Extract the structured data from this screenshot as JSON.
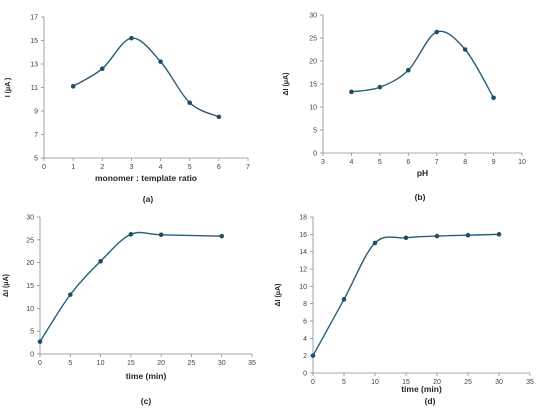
{
  "colors": {
    "series": "#2a5c78",
    "marker": "#1f4e6b",
    "axis": "#8c8c8c",
    "text": "#262626"
  },
  "chart_data": [
    {
      "type": "line",
      "panel_label": "(a)",
      "xlabel": "monomer : template ratio",
      "ylabel": "I (μA )",
      "xlim": [
        0,
        7
      ],
      "ylim": [
        5,
        17
      ],
      "xticks": [
        0,
        1,
        2,
        3,
        4,
        5,
        6,
        7
      ],
      "yticks": [
        5,
        7,
        9,
        11,
        13,
        15,
        17
      ],
      "grid": false,
      "smooth": true,
      "series": [
        {
          "x": [
            1,
            2,
            3,
            4,
            5,
            6
          ],
          "y": [
            11.1,
            12.6,
            15.2,
            13.2,
            9.7,
            8.5
          ]
        }
      ]
    },
    {
      "type": "line",
      "panel_label": "(b)",
      "xlabel": "pH",
      "ylabel": "ΔI (μA)",
      "xlim": [
        3,
        10
      ],
      "ylim": [
        0,
        30
      ],
      "xticks": [
        3,
        4,
        5,
        6,
        7,
        8,
        9,
        10
      ],
      "yticks": [
        0,
        5,
        10,
        15,
        20,
        25,
        30
      ],
      "grid": false,
      "smooth": true,
      "series": [
        {
          "x": [
            4,
            5,
            6,
            7,
            8,
            9
          ],
          "y": [
            13.3,
            14.3,
            18,
            26.3,
            22.5,
            12
          ]
        }
      ]
    },
    {
      "type": "line",
      "panel_label": "(c)",
      "xlabel": "time (min)",
      "ylabel": "ΔI (μA)",
      "xlim": [
        0,
        35
      ],
      "ylim": [
        0,
        30
      ],
      "xticks": [
        0,
        5,
        10,
        15,
        20,
        25,
        30,
        35
      ],
      "yticks": [
        0,
        5,
        10,
        15,
        20,
        25,
        30
      ],
      "grid": false,
      "smooth": true,
      "series": [
        {
          "x": [
            0,
            5,
            10,
            15,
            20,
            30
          ],
          "y": [
            2.7,
            13,
            20.3,
            26.2,
            26.1,
            25.8
          ]
        }
      ]
    },
    {
      "type": "line",
      "panel_label": "(d)",
      "xlabel": "time (min)",
      "ylabel": "ΔI (μA)",
      "xlim": [
        0,
        35
      ],
      "ylim": [
        0,
        18
      ],
      "xticks": [
        0,
        5,
        10,
        15,
        20,
        25,
        30,
        35
      ],
      "yticks": [
        0,
        2,
        4,
        6,
        8,
        10,
        12,
        14,
        16,
        18
      ],
      "grid": false,
      "smooth": true,
      "series": [
        {
          "x": [
            0,
            5,
            10,
            15,
            20,
            25,
            30
          ],
          "y": [
            2,
            8.5,
            15,
            15.6,
            15.8,
            15.9,
            16
          ]
        }
      ]
    }
  ]
}
